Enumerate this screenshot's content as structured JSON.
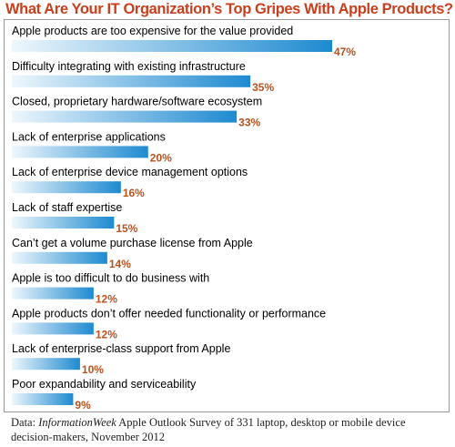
{
  "colors": {
    "title": "#c8401e",
    "label": "#000000",
    "value": "#b8521f",
    "bar_light": "#eef7fd",
    "bar_dark": "#1e8ad0",
    "frame": "#9a9a9a",
    "source": "#222222"
  },
  "chart_data": {
    "type": "bar",
    "orientation": "horizontal",
    "title": "What Are Your IT Organization’s Top Gripes With Apple Products?",
    "xlim": [
      0,
      47
    ],
    "value_suffix": "%",
    "grid": false,
    "legend": "none",
    "categories": [
      "Apple products are too expensive for the value provided",
      "Difficulty integrating with existing infrastructure",
      "Closed, proprietary hardware/software ecosystem",
      "Lack of enterprise applications",
      "Lack of enterprise device management options",
      "Lack of staff expertise",
      "Can’t get a volume purchase license from Apple",
      "Apple is too difficult to do business with",
      "Apple products don’t offer needed functionality or performance",
      "Lack of enterprise-class support from Apple",
      "Poor expandability and serviceability"
    ],
    "values": [
      47,
      35,
      33,
      20,
      16,
      15,
      14,
      12,
      12,
      10,
      9
    ],
    "value_labels": [
      "47%",
      "35%",
      "33%",
      "20%",
      "16%",
      "15%",
      "14%",
      "12%",
      "12%",
      "10%",
      "9%"
    ]
  },
  "source": {
    "prefix": "Data: ",
    "publication": "InformationWeek",
    "text": " Apple Outlook Survey of 331 laptop, desktop or mobile device decision-makers, November 2012"
  }
}
